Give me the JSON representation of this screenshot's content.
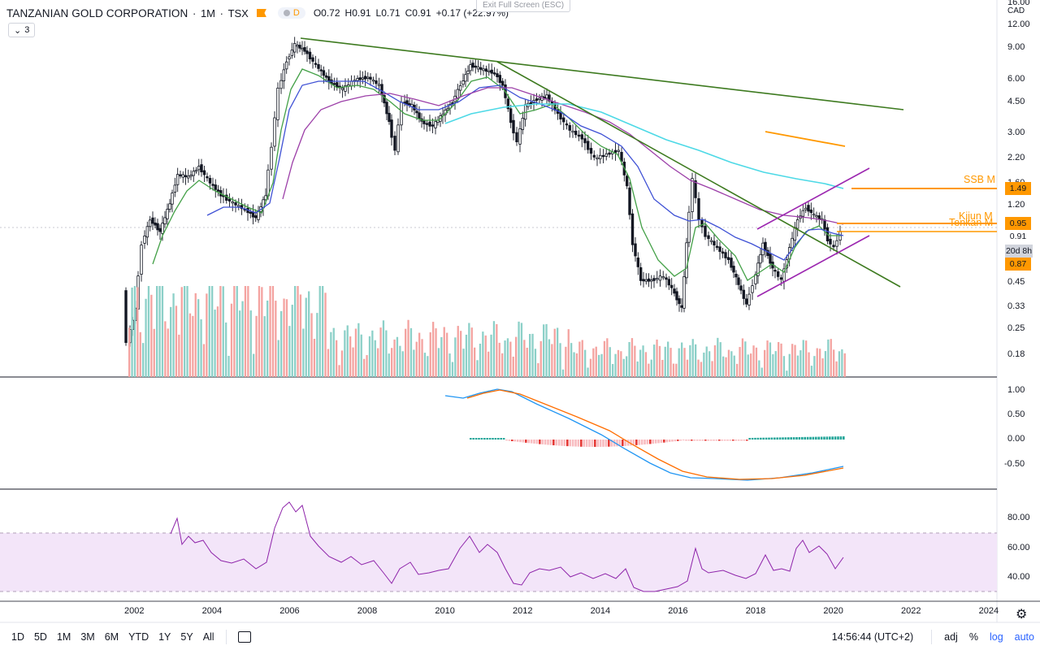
{
  "header": {
    "symbol": "TANZANIAN GOLD CORPORATION",
    "interval": "1M",
    "exchange": "TSX",
    "badge_letter": "D",
    "ohlc": {
      "o_label": "O",
      "o": "0.72",
      "h_label": "H",
      "h": "0.91",
      "l_label": "L",
      "l": "0.71",
      "c_label": "C",
      "c": "0.91",
      "change": "+0.17 (+22.97%)"
    }
  },
  "exit_fullscreen": "Exit Full Screen (ESC)",
  "indicators_collapse": "3",
  "price_axis": {
    "currency": "CAD",
    "labels": [
      "16.00",
      "12.00",
      "9.00",
      "6.00",
      "4.50",
      "3.00",
      "2.20",
      "1.60",
      "1.20",
      "0.45",
      "0.33",
      "0.25",
      "0.18"
    ],
    "tags": [
      {
        "label": "1.49",
        "color": "#ff9800"
      },
      {
        "label": "0.95",
        "color": "#ff9800"
      },
      {
        "label": "0.91",
        "color": "#ffffff"
      },
      {
        "label": "20d 8h",
        "color": "#d1d4dc"
      },
      {
        "label": "0.87",
        "color": "#ff9800"
      }
    ],
    "ichimoku_labels": {
      "ssb": "SSB M",
      "kijun": "Kijun M",
      "tenkan": "Tenkan M"
    }
  },
  "macd_axis": {
    "labels": [
      "1.00",
      "0.50",
      "0.00",
      "-0.50"
    ]
  },
  "rsi_axis": {
    "labels": [
      "80.00",
      "60.00",
      "40.00"
    ]
  },
  "time_axis": {
    "labels": [
      "2002",
      "2004",
      "2006",
      "2008",
      "2010",
      "2012",
      "2014",
      "2016",
      "2018",
      "2020",
      "2022",
      "2024"
    ]
  },
  "bottom_bar": {
    "ranges": [
      "1D",
      "5D",
      "1M",
      "3M",
      "6M",
      "YTD",
      "1Y",
      "5Y",
      "All"
    ],
    "time": "14:56:44 (UTC+2)",
    "adj": "adj",
    "percent": "%",
    "log": "log",
    "auto": "auto"
  },
  "colors": {
    "up": "#26a69a",
    "down": "#ef5350",
    "volume_up": "#8cd0c8",
    "volume_down": "#f4a3a0",
    "trendline": "#3d7a1f",
    "channel": "#9c27b0",
    "ichimoku": "#ff9800",
    "rsi_line": "#8e24aa",
    "rsi_band": "#f3e5f9",
    "ema_fast": "#43a047",
    "ema_mid": "#3f51d5",
    "ema_slow": "#9c3fa8",
    "ma_long": "#4dd9e6",
    "macd": "#2196f3",
    "signal": "#ff6d00"
  }
}
